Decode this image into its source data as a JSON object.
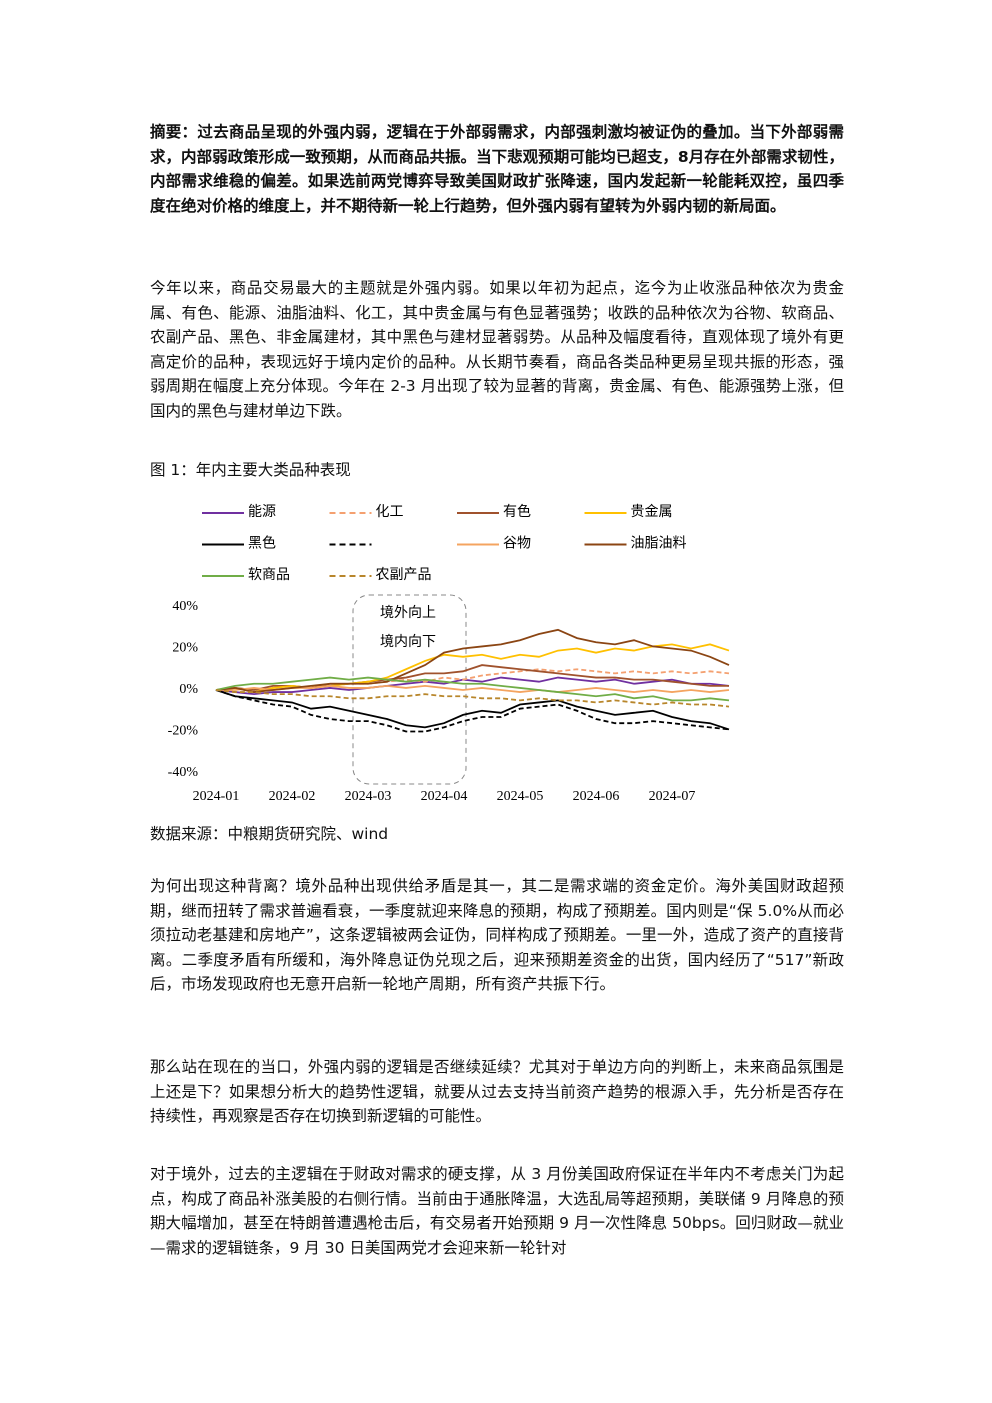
{
  "summary": "摘要：过去商品呈现的外强内弱，逻辑在于外部弱需求，内部强刺激均被证伪的叠加。当下外部弱需求，内部弱政策形成一致预期，从而商品共振。当下悲观预期可能均已超支，8月存在外部需求韧性，内部需求维稳的偏差。如果选前两党博弈导致美国财政扩张降速，国内发起新一轮能耗双控，虽四季度在绝对价格的维度上，并不期待新一轮上行趋势，但外强内弱有望转为外弱内韧的新局面。",
  "paragraphs": [
    "今年以来，商品交易最大的主题就是外强内弱。如果以年初为起点，迄今为止收涨品种依次为贵金属、有色、能源、油脂油料、化工，其中贵金属与有色显著强势；收跌的品种依次为谷物、软商品、农副产品、黑色、非金属建材，其中黑色与建材显著弱势。从品种及幅度看待，直观体现了境外有更高定价的品种，表现远好于境内定价的品种。从长期节奏看，商品各类品种更易呈现共振的形态，强弱周期在幅度上充分体现。今年在 2-3 月出现了较为显著的背离，贵金属、有色、能源强势上涨，但国内的黑色与建材单边下跌。"
  ],
  "figure_caption": "图 1：年内主要大类品种表现",
  "chart_data": {
    "type": "line",
    "categories": [
      "2024-01",
      null,
      null,
      null,
      "2024-02",
      null,
      null,
      null,
      "2024-03",
      null,
      null,
      null,
      "2024-04",
      null,
      null,
      null,
      "2024-05",
      null,
      null,
      null,
      "2024-06",
      null,
      null,
      null,
      "2024-07",
      null,
      null,
      null
    ],
    "ylim": [
      -40,
      40
    ],
    "yticks": [
      {
        "value": 40,
        "label": "40%"
      },
      {
        "value": 20,
        "label": "20%"
      },
      {
        "value": 0,
        "label": "0%"
      },
      {
        "value": -20,
        "label": "-20%"
      },
      {
        "value": -40,
        "label": "-40%"
      }
    ],
    "annotation": [
      "境外向上",
      "境内向下"
    ],
    "series": [
      {
        "name": "能源",
        "color": "#7030a0",
        "dash": false,
        "values": [
          0,
          -1,
          -2,
          -1,
          -1,
          0,
          1,
          0,
          1,
          2,
          3,
          4,
          3,
          5,
          4,
          6,
          5,
          4,
          6,
          5,
          4,
          5,
          3,
          4,
          5,
          3,
          3,
          2
        ]
      },
      {
        "name": "化工",
        "color": "#f4a070",
        "dash": true,
        "values": [
          0,
          1,
          0,
          1,
          2,
          1,
          2,
          3,
          3,
          4,
          5,
          4,
          6,
          5,
          7,
          8,
          9,
          10,
          9,
          10,
          9,
          8,
          9,
          8,
          9,
          8,
          9,
          8
        ]
      },
      {
        "name": "有色",
        "color": "#a0522d",
        "dash": false,
        "values": [
          0,
          1,
          0,
          2,
          2,
          1,
          3,
          3,
          4,
          5,
          6,
          8,
          8,
          9,
          12,
          11,
          10,
          9,
          8,
          7,
          6,
          6,
          5,
          5,
          4,
          3,
          2,
          2
        ]
      },
      {
        "name": "贵金属",
        "color": "#ffc000",
        "dash": false,
        "values": [
          0,
          1,
          -1,
          1,
          2,
          1,
          2,
          3,
          4,
          6,
          10,
          14,
          17,
          16,
          17,
          15,
          17,
          16,
          19,
          20,
          18,
          20,
          19,
          21,
          22,
          20,
          22,
          19
        ]
      },
      {
        "name": "黑色",
        "color": "#000000",
        "dash": false,
        "values": [
          0,
          -3,
          -4,
          -5,
          -6,
          -9,
          -8,
          -10,
          -12,
          -14,
          -17,
          -18,
          -16,
          -12,
          -10,
          -11,
          -7,
          -6,
          -5,
          -8,
          -10,
          -12,
          -11,
          -10,
          -13,
          -15,
          -16,
          -19
        ]
      },
      {
        "name": null,
        "color": "#000000",
        "dash": true,
        "values": [
          0,
          -3,
          -5,
          -7,
          -8,
          -12,
          -14,
          -15,
          -15,
          -17,
          -20,
          -20,
          -18,
          -15,
          -13,
          -13,
          -9,
          -8,
          -7,
          -10,
          -14,
          -16,
          -16,
          -15,
          -16,
          -17,
          -18,
          -19
        ]
      },
      {
        "name": "谷物",
        "color": "#f4a460",
        "dash": false,
        "values": [
          0,
          0,
          1,
          0,
          1,
          1,
          2,
          1,
          1,
          2,
          1,
          2,
          1,
          0,
          1,
          0,
          -1,
          0,
          -1,
          0,
          1,
          0,
          -1,
          0,
          -1,
          0,
          -1,
          0
        ]
      },
      {
        "name": "油脂油料",
        "color": "#8b4513",
        "dash": false,
        "values": [
          0,
          1,
          -1,
          0,
          1,
          2,
          3,
          3,
          3,
          4,
          8,
          12,
          18,
          20,
          21,
          22,
          24,
          27,
          29,
          25,
          23,
          22,
          24,
          21,
          20,
          19,
          16,
          12
        ]
      },
      {
        "name": "软商品",
        "color": "#70ad47",
        "dash": false,
        "values": [
          0,
          2,
          3,
          3,
          4,
          5,
          6,
          5,
          6,
          5,
          4,
          5,
          4,
          3,
          3,
          2,
          1,
          0,
          -1,
          -2,
          -3,
          -2,
          -4,
          -3,
          -5,
          -5,
          -4,
          -5
        ]
      },
      {
        "name": "农副产品",
        "color": "#b8862b",
        "dash": true,
        "values": [
          0,
          -1,
          -1,
          -2,
          -2,
          -3,
          -3,
          -4,
          -4,
          -3,
          -3,
          -2,
          -3,
          -3,
          -4,
          -4,
          -5,
          -4,
          -5,
          -5,
          -6,
          -5,
          -6,
          -7,
          -6,
          -7,
          -7,
          -8
        ]
      }
    ]
  },
  "source": "数据来源：中粮期货研究院、wind",
  "body": [
    "为何出现这种背离？境外品种出现供给矛盾是其一，其二是需求端的资金定价。海外美国财政超预期，继而扭转了需求普遍看衰，一季度就迎来降息的预期，构成了预期差。国内则是“保 5.0%从而必须拉动老基建和房地产”，这条逻辑被两会证伪，同样构成了预期差。一里一外，造成了资产的直接背离。二季度矛盾有所缓和，海外降息证伪兑现之后，迎来预期差资金的出货，国内经历了“517”新政后，市场发现政府也无意开启新一轮地产周期，所有资产共振下行。",
    "那么站在现在的当口，外强内弱的逻辑是否继续延续？尤其对于单边方向的判断上，未来商品氛围是上还是下？如果想分析大的趋势性逻辑，就要从过去支持当前资产趋势的根源入手，先分析是否存在持续性，再观察是否存在切换到新逻辑的可能性。",
    "对于境外，过去的主逻辑在于财政对需求的硬支撑，从 3 月份美国政府保证在半年内不考虑关门为起点，构成了商品补涨美股的右侧行情。当前由于通胀降温，大选乱局等超预期，美联储 9 月降息的预期大幅增加，甚至在特朗普遭遇枪击后，有交易者开始预期 9 月一次性降息 50bps。回归财政—就业—需求的逻辑链条，9 月 30 日美国两党才会迎来新一轮针对"
  ]
}
